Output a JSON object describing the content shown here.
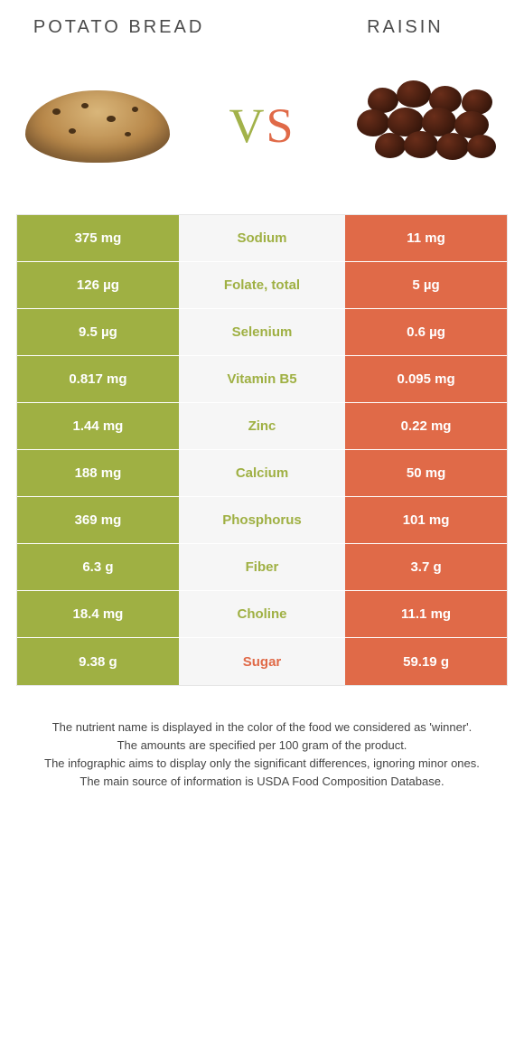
{
  "header": {
    "left_title": "POTATO BREAD",
    "right_title": "RAISIN",
    "vs_v": "V",
    "vs_s": "S"
  },
  "colors": {
    "left": "#9fb043",
    "right": "#e06a48",
    "mid_bg": "#f6f6f6",
    "border": "#e6e6e6"
  },
  "rows": [
    {
      "left": "375 mg",
      "label": "Sodium",
      "right": "11 mg",
      "winner": "left"
    },
    {
      "left": "126 µg",
      "label": "Folate, total",
      "right": "5 µg",
      "winner": "left"
    },
    {
      "left": "9.5 µg",
      "label": "Selenium",
      "right": "0.6 µg",
      "winner": "left"
    },
    {
      "left": "0.817 mg",
      "label": "Vitamin B5",
      "right": "0.095 mg",
      "winner": "left"
    },
    {
      "left": "1.44 mg",
      "label": "Zinc",
      "right": "0.22 mg",
      "winner": "left"
    },
    {
      "left": "188 mg",
      "label": "Calcium",
      "right": "50 mg",
      "winner": "left"
    },
    {
      "left": "369 mg",
      "label": "Phosphorus",
      "right": "101 mg",
      "winner": "left"
    },
    {
      "left": "6.3 g",
      "label": "Fiber",
      "right": "3.7 g",
      "winner": "left"
    },
    {
      "left": "18.4 mg",
      "label": "Choline",
      "right": "11.1 mg",
      "winner": "left"
    },
    {
      "left": "9.38 g",
      "label": "Sugar",
      "right": "59.19 g",
      "winner": "right"
    }
  ],
  "footer": {
    "line1": "The nutrient name is displayed in the color of the food we considered as 'winner'.",
    "line2": "The amounts are specified per 100 gram of the product.",
    "line3": "The infographic aims to display only the significant differences, ignoring minor ones.",
    "line4": "The main source of information is USDA Food Composition Database."
  }
}
